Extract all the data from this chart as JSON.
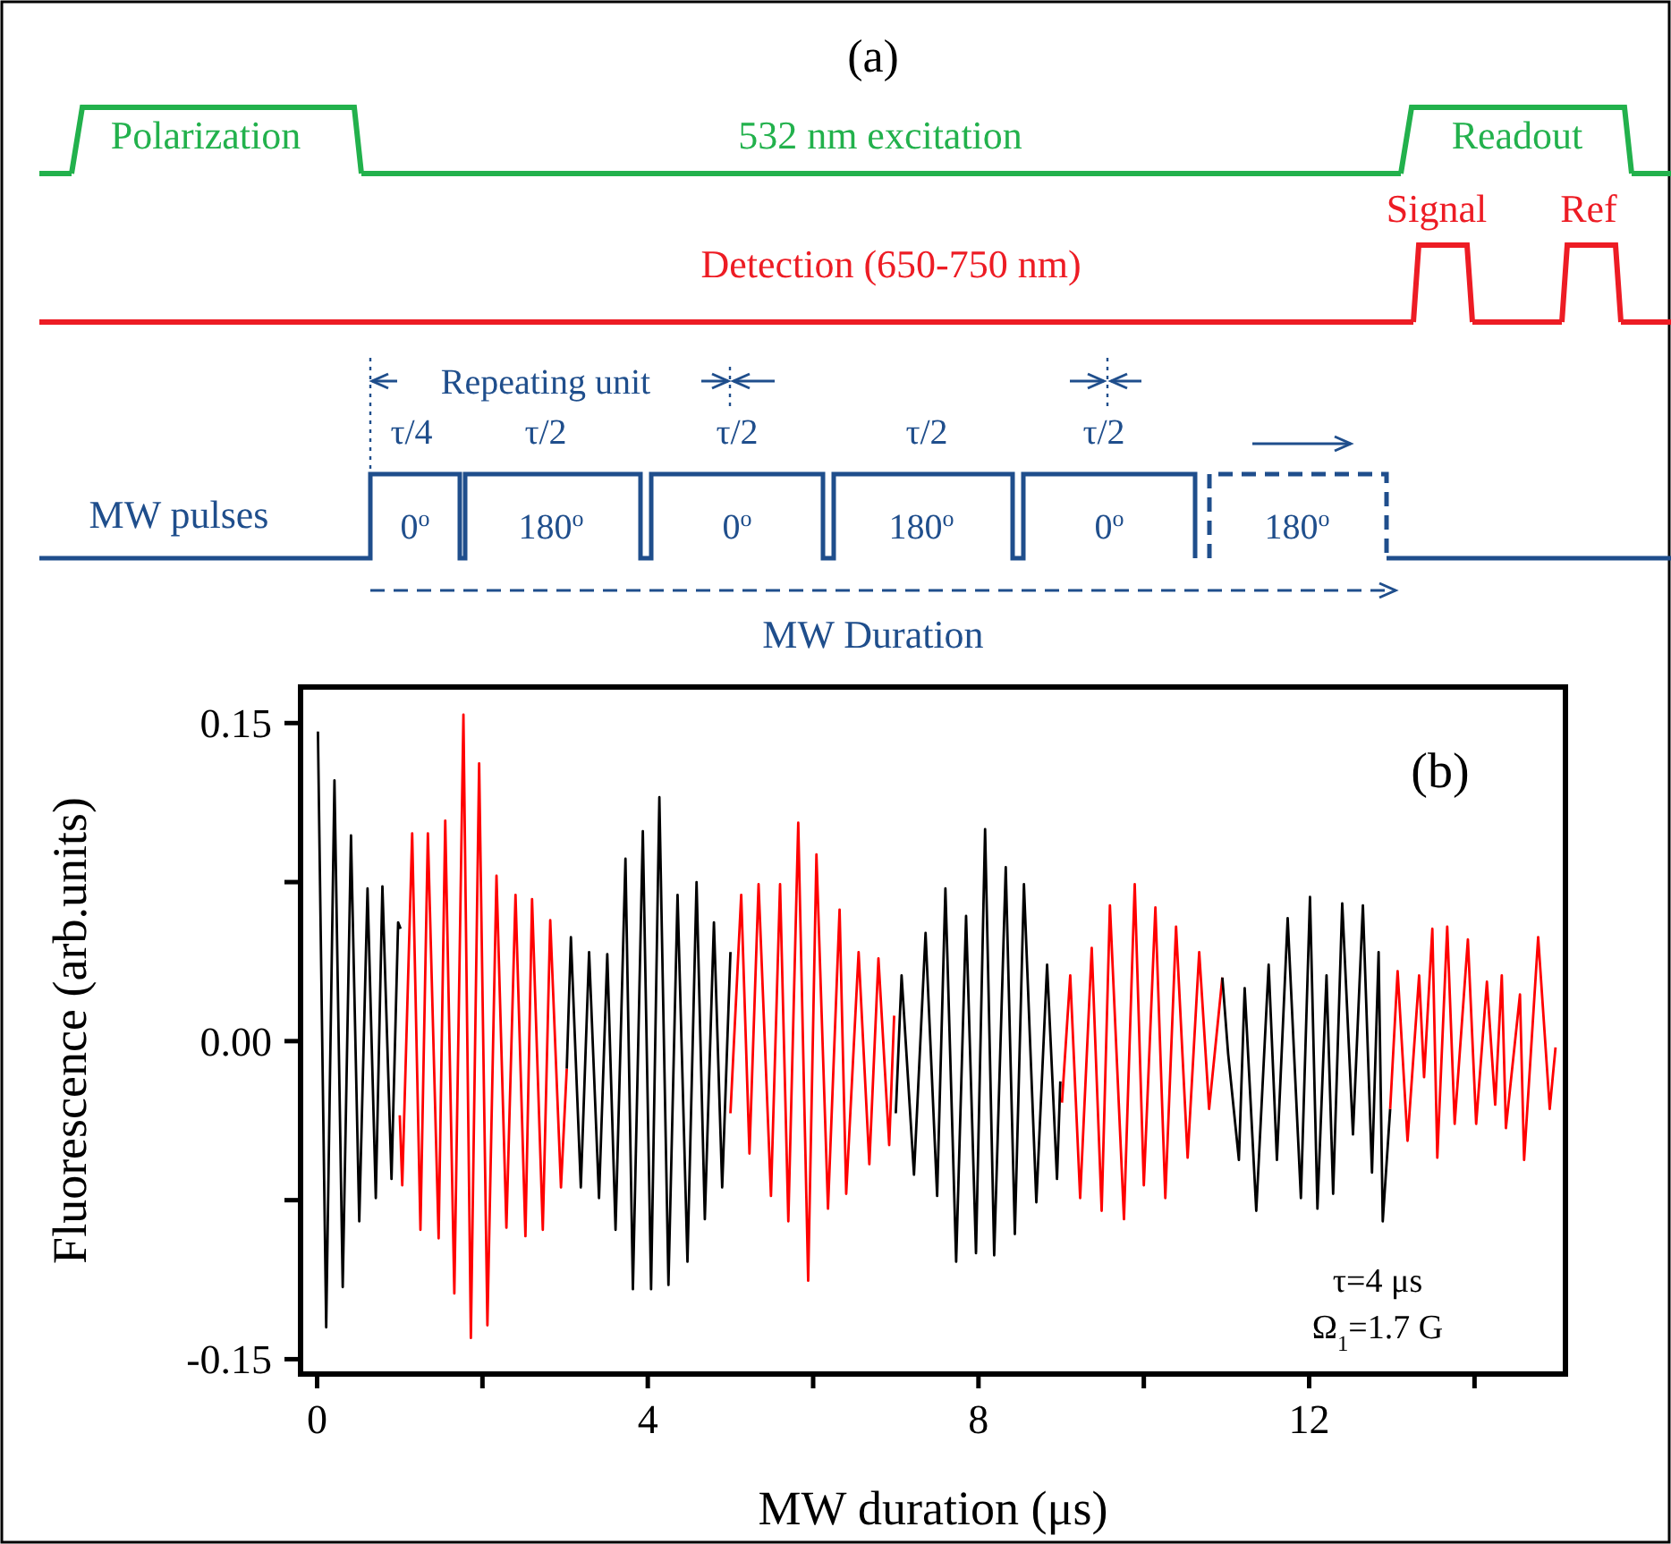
{
  "chart_data": [
    {
      "type": "other",
      "title": "(a)",
      "annotations": [
        "Polarization",
        "532 nm excitation",
        "Readout",
        "Signal",
        "Ref",
        "Detection (650-750 nm)",
        "Repeating unit",
        "τ/4",
        "τ/2",
        "τ/2",
        "τ/2",
        "τ/2",
        "MW pulses",
        "0$^{o}$",
        "180$^{o}$",
        "0$^{o}$",
        "180$^{o}$",
        "0$^{o}$",
        "180$^{o}$",
        "MW Duration"
      ]
    },
    {
      "type": "line",
      "title": "(b)",
      "xlabel": "MW duration (μs)",
      "ylabel": "Fluorescence (arb.units)",
      "xlim": [
        -0.2,
        15.1
      ],
      "ylim": [
        -0.157,
        0.167
      ],
      "xticks": [
        0,
        {
          "value": 2,
          "label": null
        },
        4,
        {
          "value": 6,
          "label": null
        },
        8,
        {
          "value": 10,
          "label": null
        },
        12,
        {
          "value": 14,
          "label": null
        }
      ],
      "yticks": [
        {
          "value": -0.15,
          "label": "-0.15"
        },
        {
          "value": -0.075,
          "label": null
        },
        {
          "value": 0,
          "label": "0.00"
        },
        {
          "value": 0.075,
          "label": null
        },
        0.15
      ],
      "annotations": [
        "τ=4 μs",
        "Ω$_{1}$=1.7 G"
      ],
      "series": [
        {
          "color": "#000000",
          "x": [
            0.01,
            0.11,
            0.21,
            0.31,
            0.41,
            0.51,
            0.61,
            0.71,
            0.79,
            0.9,
            0.98,
            1.01
          ],
          "values": [
            0.146,
            -0.135,
            0.123,
            -0.116,
            0.097,
            -0.085,
            0.072,
            -0.074,
            0.073,
            -0.065,
            0.056,
            0.053
          ]
        },
        {
          "color": "#ff0000",
          "x": [
            1.0,
            1.03,
            1.15,
            1.25,
            1.34,
            1.47,
            1.55,
            1.66,
            1.77,
            1.86,
            1.96,
            2.06,
            2.17,
            2.29,
            2.4,
            2.52,
            2.6,
            2.73,
            2.82,
            2.95,
            3.02
          ],
          "values": [
            -0.035,
            -0.068,
            0.098,
            -0.089,
            0.098,
            -0.093,
            0.104,
            -0.119,
            0.154,
            -0.14,
            0.131,
            -0.134,
            0.078,
            -0.088,
            0.069,
            -0.092,
            0.067,
            -0.089,
            0.057,
            -0.069,
            -0.013
          ]
        },
        {
          "color": "#000000",
          "x": [
            3.02,
            3.07,
            3.19,
            3.29,
            3.41,
            3.51,
            3.61,
            3.73,
            3.82,
            3.94,
            4.04,
            4.14,
            4.25,
            4.36,
            4.48,
            4.59,
            4.69,
            4.8,
            4.9,
            5.0
          ],
          "values": [
            -0.013,
            0.049,
            -0.069,
            0.042,
            -0.074,
            0.041,
            -0.089,
            0.086,
            -0.117,
            0.099,
            -0.117,
            0.115,
            -0.115,
            0.069,
            -0.104,
            0.075,
            -0.084,
            0.056,
            -0.069,
            0.042
          ]
        },
        {
          "color": "#ff0000",
          "x": [
            5.0,
            5.13,
            5.23,
            5.34,
            5.49,
            5.6,
            5.7,
            5.82,
            5.94,
            6.04,
            6.18,
            6.32,
            6.4,
            6.55,
            6.68,
            6.79,
            6.92,
            6.98
          ],
          "values": [
            -0.034,
            0.069,
            -0.053,
            0.074,
            -0.073,
            0.074,
            -0.085,
            0.103,
            -0.113,
            0.088,
            -0.079,
            0.062,
            -0.072,
            0.042,
            -0.058,
            0.039,
            -0.049,
            0.012
          ]
        },
        {
          "color": "#000000",
          "x": [
            7.0,
            7.07,
            7.22,
            7.36,
            7.5,
            7.6,
            7.73,
            7.85,
            7.97,
            8.08,
            8.19,
            8.33,
            8.44,
            8.55,
            8.7,
            8.83,
            8.95,
            8.99
          ],
          "values": [
            -0.034,
            0.031,
            -0.063,
            0.051,
            -0.073,
            0.072,
            -0.104,
            0.059,
            -0.1,
            0.1,
            -0.101,
            0.082,
            -0.091,
            0.074,
            -0.076,
            0.036,
            -0.065,
            -0.019
          ]
        },
        {
          "color": "#ff0000",
          "x": [
            9.01,
            9.11,
            9.23,
            9.37,
            9.49,
            9.59,
            9.76,
            9.89,
            10.0,
            10.14,
            10.26,
            10.39,
            10.53,
            10.67,
            10.79,
            10.95
          ],
          "values": [
            -0.029,
            0.031,
            -0.074,
            0.044,
            -0.08,
            0.064,
            -0.084,
            0.074,
            -0.068,
            0.063,
            -0.074,
            0.054,
            -0.055,
            0.042,
            -0.032,
            0.03
          ]
        },
        {
          "color": "#000000",
          "x": [
            10.95,
            11.02,
            11.15,
            11.22,
            11.36,
            11.51,
            11.61,
            11.74,
            11.9,
            12.01,
            12.1,
            12.21,
            12.29,
            12.4,
            12.53,
            12.65,
            12.76,
            12.84,
            12.89,
            12.98
          ],
          "values": [
            0.03,
            -0.006,
            -0.056,
            0.025,
            -0.08,
            0.036,
            -0.056,
            0.058,
            -0.074,
            0.068,
            -0.079,
            0.031,
            -0.072,
            0.065,
            -0.044,
            0.064,
            -0.062,
            0.042,
            -0.085,
            -0.032
          ]
        },
        {
          "color": "#ff0000",
          "x": [
            12.98,
            13.07,
            13.19,
            13.33,
            13.39,
            13.49,
            13.55,
            13.67,
            13.76,
            13.92,
            14.02,
            14.15,
            14.25,
            14.33,
            14.38,
            14.55,
            14.6,
            14.77,
            14.91,
            14.98
          ],
          "values": [
            -0.032,
            0.033,
            -0.047,
            0.031,
            -0.017,
            0.053,
            -0.055,
            0.054,
            -0.039,
            0.048,
            -0.039,
            0.028,
            -0.03,
            0.031,
            -0.041,
            0.022,
            -0.056,
            0.049,
            -0.032,
            -0.003
          ]
        }
      ]
    }
  ]
}
